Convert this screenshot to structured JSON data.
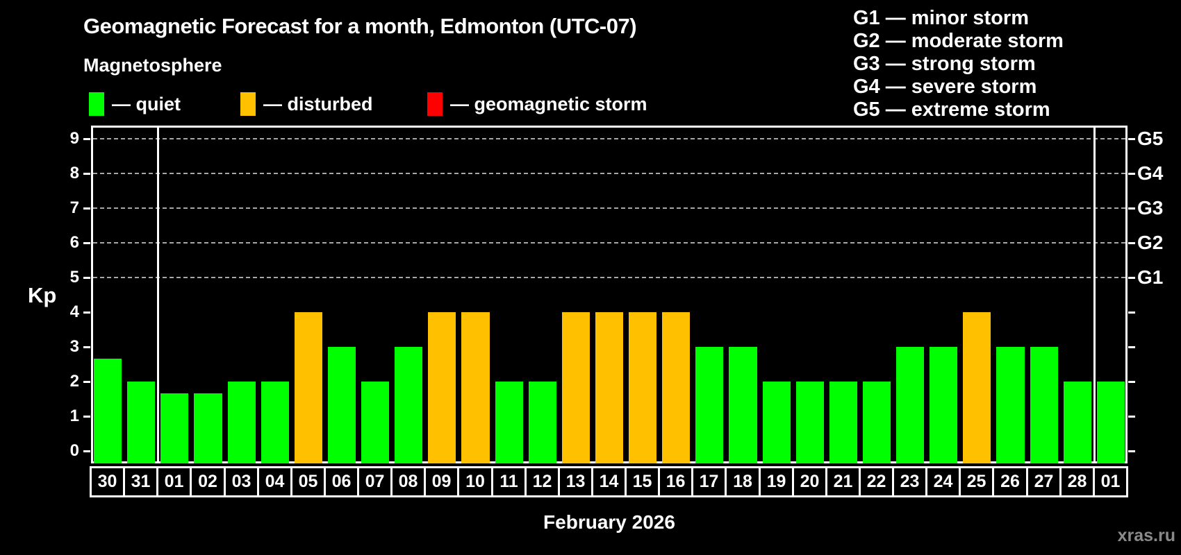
{
  "title": "Geomagnetic Forecast for a month, Edmonton (UTC-07)",
  "subtitle": "Magnetosphere",
  "watermark": "xras.ru",
  "legend": {
    "items": [
      {
        "key": "quiet",
        "label": "— quiet",
        "color": "#00ff00"
      },
      {
        "key": "disturbed",
        "label": "— disturbed",
        "color": "#ffc000"
      },
      {
        "key": "storm",
        "label": "— geomagnetic storm",
        "color": "#ff0000"
      }
    ]
  },
  "g_legend": {
    "items": [
      "G1 — minor storm",
      "G2 — moderate storm",
      "G3 — strong storm",
      "G4 — severe storm",
      "G5 — extreme storm"
    ]
  },
  "chart_data": {
    "type": "bar",
    "title": "Geomagnetic Forecast for a month, Edmonton (UTC-07)",
    "xlabel": "February 2026",
    "ylabel": "Kp",
    "ylim": [
      0,
      9.4
    ],
    "yticks": [
      0,
      1,
      2,
      3,
      4,
      5,
      6,
      7,
      8,
      9
    ],
    "gridlines_kp": [
      5,
      6,
      7,
      8,
      9
    ],
    "grid": "dashed horizontal lines at storm levels only",
    "legend_position": "top",
    "right_axis_labels": [
      {
        "label": "G1",
        "kp": 5
      },
      {
        "label": "G2",
        "kp": 6
      },
      {
        "label": "G3",
        "kp": 7
      },
      {
        "label": "G4",
        "kp": 8
      },
      {
        "label": "G5",
        "kp": 9
      }
    ],
    "categories": [
      "30",
      "31",
      "01",
      "02",
      "03",
      "04",
      "05",
      "06",
      "07",
      "08",
      "09",
      "10",
      "11",
      "12",
      "13",
      "14",
      "15",
      "16",
      "17",
      "18",
      "19",
      "20",
      "21",
      "22",
      "23",
      "24",
      "25",
      "26",
      "27",
      "28",
      "01"
    ],
    "values": [
      2.67,
      2,
      1.67,
      1.67,
      2,
      2,
      4,
      3,
      2,
      3,
      4,
      4,
      2,
      2,
      4,
      4,
      4,
      4,
      3,
      3,
      2,
      2,
      2,
      2,
      3,
      3,
      4,
      3,
      3,
      2,
      2
    ],
    "status": [
      "quiet",
      "quiet",
      "quiet",
      "quiet",
      "quiet",
      "quiet",
      "disturbed",
      "quiet",
      "quiet",
      "quiet",
      "disturbed",
      "disturbed",
      "quiet",
      "quiet",
      "disturbed",
      "disturbed",
      "disturbed",
      "disturbed",
      "quiet",
      "quiet",
      "quiet",
      "quiet",
      "quiet",
      "quiet",
      "quiet",
      "quiet",
      "disturbed",
      "quiet",
      "quiet",
      "quiet",
      "quiet"
    ],
    "colors": {
      "quiet": "#00ff00",
      "disturbed": "#ffc000",
      "storm": "#ff0000"
    },
    "month_separators_after_index": [
      1,
      29
    ]
  }
}
